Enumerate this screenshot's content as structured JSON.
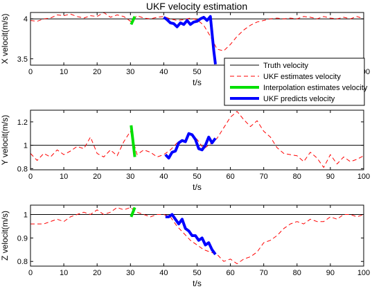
{
  "chart_data": [
    {
      "type": "line",
      "title": "UKF velocity estimation",
      "xlabel": "t/s",
      "ylabel": "X velocit(m/s)",
      "xlim": [
        0,
        100
      ],
      "ylim": [
        3.42,
        4.08
      ],
      "xticks": [
        0,
        10,
        20,
        30,
        40,
        50,
        60,
        70,
        80,
        90,
        100
      ],
      "yticks": [
        3.5,
        4
      ],
      "truth": 4,
      "legend": {
        "position": "top-right",
        "entries": [
          "Truth velocity",
          "UKF estimates velocity",
          "Interpolation estimates velocity",
          "UKF predicts velocity"
        ]
      },
      "series": [
        {
          "name": "UKF estimates velocity",
          "style": "dashed",
          "color": "#ff0000",
          "x": [
            0,
            2,
            4,
            6,
            8,
            10,
            12,
            14,
            16,
            18,
            20,
            22,
            24,
            26,
            28,
            30,
            32,
            34,
            36,
            38,
            40,
            42,
            44,
            46,
            48,
            50,
            52,
            54,
            56,
            58,
            60,
            62,
            64,
            66,
            68,
            70,
            72,
            74,
            76,
            78,
            80,
            82,
            84,
            86,
            88,
            90,
            92,
            94,
            96,
            98,
            100
          ],
          "y": [
            3.98,
            3.97,
            4.0,
            4.01,
            4.05,
            4.04,
            4.06,
            4.03,
            4.01,
            4.04,
            4.03,
            4.08,
            4.02,
            4.05,
            4.03,
            3.97,
            4.04,
            4.01,
            4.0,
            4.02,
            4.03,
            4.0,
            3.98,
            3.99,
            4.01,
            3.99,
            3.92,
            3.78,
            3.62,
            3.6,
            3.68,
            3.78,
            3.86,
            3.92,
            3.96,
            3.98,
            4.0,
            4.01,
            4.0,
            4.01,
            4.0,
            4.03,
            4.02,
            4.0,
            4.03,
            4.01,
            4.0,
            4.02,
            4.0,
            4.03,
            4.0
          ]
        },
        {
          "name": "Interpolation estimates velocity",
          "style": "solid",
          "color": "#00e000",
          "x": [
            30.2,
            31.3
          ],
          "y": [
            3.93,
            4.03
          ]
        },
        {
          "name": "UKF predicts velocity",
          "style": "solid",
          "color": "#0000ff",
          "x": [
            40,
            41,
            42,
            43,
            44,
            45,
            46,
            47,
            48,
            49,
            50,
            51,
            52,
            53,
            54,
            55,
            55.5
          ],
          "y": [
            4.02,
            3.99,
            3.95,
            3.94,
            3.9,
            3.95,
            3.93,
            3.98,
            3.93,
            3.96,
            3.97,
            4.0,
            4.02,
            3.98,
            4.03,
            3.6,
            3.43
          ]
        }
      ]
    },
    {
      "type": "line",
      "xlabel": "t/s",
      "ylabel": "Y velocit(m/s)",
      "xlim": [
        0,
        100
      ],
      "ylim": [
        0.79,
        1.3
      ],
      "xticks": [
        0,
        10,
        20,
        30,
        40,
        50,
        60,
        70,
        80,
        90,
        100
      ],
      "yticks": [
        0.8,
        1,
        1.2
      ],
      "truth": 1,
      "series": [
        {
          "name": "UKF estimates velocity",
          "style": "dashed",
          "color": "#ff0000",
          "x": [
            0,
            2,
            4,
            6,
            8,
            10,
            12,
            14,
            16,
            18,
            20,
            22,
            24,
            26,
            28,
            30,
            32,
            34,
            36,
            38,
            40,
            42,
            44,
            46,
            48,
            50,
            52,
            54,
            56,
            58,
            60,
            62,
            64,
            66,
            68,
            70,
            72,
            74,
            76,
            78,
            80,
            82,
            84,
            86,
            88,
            90,
            92,
            94,
            96,
            98,
            100
          ],
          "y": [
            0.93,
            0.87,
            0.93,
            0.9,
            0.96,
            0.92,
            0.95,
            0.99,
            0.97,
            1.07,
            0.93,
            0.9,
            0.96,
            0.91,
            1.03,
            1.12,
            0.92,
            0.96,
            0.94,
            0.9,
            0.92,
            0.96,
            1.02,
            1.04,
            1.1,
            1.05,
            0.97,
            1.01,
            1.06,
            1.15,
            1.24,
            1.29,
            1.22,
            1.16,
            1.21,
            1.12,
            1.07,
            0.98,
            0.93,
            0.92,
            0.91,
            0.86,
            0.94,
            0.89,
            0.81,
            0.92,
            0.84,
            0.9,
            0.86,
            0.88,
            0.91
          ]
        },
        {
          "name": "Interpolation estimates velocity",
          "style": "solid",
          "color": "#00e000",
          "x": [
            30.2,
            31.3
          ],
          "y": [
            1.17,
            0.9
          ]
        },
        {
          "name": "UKF predicts velocity",
          "style": "solid",
          "color": "#0000ff",
          "x": [
            40.5,
            41.5,
            42.5,
            43.5,
            44.5,
            45.5,
            46.5,
            47.5,
            48.5,
            49.5,
            50.5,
            51.5,
            52.5,
            53.5,
            54.5,
            55.5
          ],
          "y": [
            0.92,
            0.89,
            0.94,
            0.95,
            1.02,
            1.04,
            1.03,
            1.1,
            1.09,
            1.05,
            0.97,
            0.96,
            1.0,
            1.07,
            1.02,
            1.06
          ]
        }
      ]
    },
    {
      "type": "line",
      "xlabel": "t/s",
      "ylabel": "Z velocit(m/s)",
      "xlim": [
        0,
        100
      ],
      "ylim": [
        0.78,
        1.04
      ],
      "xticks": [
        0,
        10,
        20,
        30,
        40,
        50,
        60,
        70,
        80,
        90,
        100
      ],
      "yticks": [
        0.8,
        0.9,
        1
      ],
      "truth": 1,
      "series": [
        {
          "name": "UKF estimates velocity",
          "style": "dashed",
          "color": "#ff0000",
          "x": [
            0,
            2,
            4,
            6,
            8,
            10,
            12,
            14,
            16,
            18,
            20,
            22,
            24,
            26,
            28,
            30,
            32,
            34,
            36,
            38,
            40,
            42,
            44,
            46,
            48,
            50,
            52,
            54,
            56,
            58,
            60,
            62,
            64,
            66,
            68,
            70,
            72,
            74,
            76,
            78,
            80,
            82,
            84,
            86,
            88,
            90,
            92,
            94,
            96,
            98,
            100
          ],
          "y": [
            0.96,
            0.96,
            0.96,
            0.97,
            0.98,
            0.97,
            0.99,
            1.0,
            1.01,
            1.0,
            1.02,
            1.0,
            1.01,
            1.03,
            1.02,
            1.03,
            1.01,
            1.0,
            0.99,
            1.0,
            1.0,
            0.99,
            0.95,
            0.92,
            0.89,
            0.87,
            0.85,
            0.84,
            0.83,
            0.8,
            0.81,
            0.79,
            0.81,
            0.82,
            0.84,
            0.88,
            0.89,
            0.91,
            0.94,
            0.96,
            0.97,
            0.96,
            0.98,
            0.97,
            0.97,
            0.99,
            0.98,
            1.0,
            1.0,
            0.99,
            1.0
          ]
        },
        {
          "name": "Interpolation estimates velocity",
          "style": "solid",
          "color": "#00e000",
          "x": [
            30.2,
            31.3
          ],
          "y": [
            0.99,
            1.03
          ]
        },
        {
          "name": "UKF predicts velocity",
          "style": "solid",
          "color": "#0000ff",
          "x": [
            40.5,
            41.5,
            42.5,
            43.5,
            44.5,
            45.5,
            46.5,
            47.5,
            48.5,
            49.5,
            50.5,
            51.5,
            52.5,
            53.5,
            54.5,
            55.5
          ],
          "y": [
            0.99,
            0.99,
            1.0,
            0.98,
            0.96,
            0.98,
            0.94,
            0.93,
            0.91,
            0.91,
            0.89,
            0.9,
            0.87,
            0.88,
            0.85,
            0.83
          ]
        }
      ]
    }
  ]
}
